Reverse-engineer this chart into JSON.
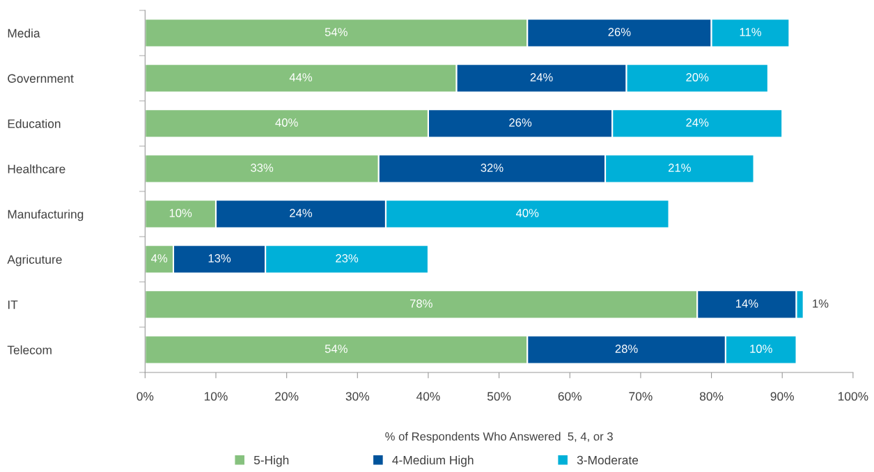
{
  "chart_data": {
    "type": "bar",
    "orientation": "horizontal",
    "stacked": true,
    "categories": [
      "Media",
      "Government",
      "Education",
      "Healthcare",
      "Manufacturing",
      "Agricuture",
      "IT",
      "Telecom"
    ],
    "series": [
      {
        "name": "5-High",
        "color": "#86c17e",
        "values": [
          54,
          44,
          40,
          33,
          10,
          4,
          78,
          54
        ],
        "value_labels": [
          "54%",
          "44%",
          "40%",
          "33%",
          "10%",
          "4%",
          "78%",
          "54%"
        ]
      },
      {
        "name": "4-Medium High",
        "color": "#00539b",
        "values": [
          26,
          24,
          26,
          32,
          24,
          13,
          14,
          28
        ],
        "value_labels": [
          "26%",
          "24%",
          "26%",
          "32%",
          "24%",
          "13%",
          "14%",
          "28%"
        ]
      },
      {
        "name": "3-Moderate",
        "color": "#00b0d8",
        "values": [
          11,
          20,
          24,
          21,
          40,
          23,
          1,
          10
        ],
        "value_labels": [
          "11%",
          "20%",
          "24%",
          "21%",
          "40%",
          "23%",
          "1%",
          "10%"
        ]
      }
    ],
    "xlabel": "% of Respondents Who Answered  5, 4, or 3",
    "xlim": [
      0,
      100
    ],
    "xticks": [
      {
        "value": 0,
        "label": "0%"
      },
      {
        "value": 10,
        "label": "10%"
      },
      {
        "value": 20,
        "label": "20%"
      },
      {
        "value": 30,
        "label": "30%"
      },
      {
        "value": 40,
        "label": "40%"
      },
      {
        "value": 50,
        "label": "50%"
      },
      {
        "value": 60,
        "label": "60%"
      },
      {
        "value": 70,
        "label": "70%"
      },
      {
        "value": 80,
        "label": "80%"
      },
      {
        "value": 90,
        "label": "90%"
      },
      {
        "value": 100,
        "label": "100%"
      }
    ],
    "legend": "bottom",
    "grid": false
  }
}
